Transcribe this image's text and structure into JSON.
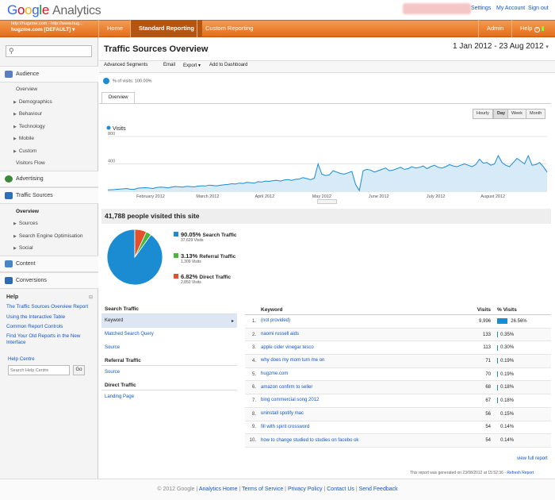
{
  "app": {
    "logo_letters": [
      "G",
      "o",
      "o",
      "g",
      "l",
      "e"
    ],
    "product": "Analytics"
  },
  "top_links": {
    "settings": "Settings",
    "my_account": "My Account",
    "sign_out": "Sign out"
  },
  "account": {
    "line1": "http://hugzme.com - http://www.hug...",
    "line2": "hugzme.com [DEFAULT]"
  },
  "nav": {
    "tabs": [
      "Home",
      "Standard Reporting",
      "Custom Reporting"
    ],
    "admin": "Admin",
    "help": "Help"
  },
  "sidebar": {
    "audience": "Audience",
    "audience_items": [
      "Overview",
      "Demographics",
      "Behaviour",
      "Technology",
      "Mobile",
      "Custom",
      "Visitors Flow"
    ],
    "advertising": "Advertising",
    "traffic_sources": "Traffic Sources",
    "traffic_items": [
      "Overview",
      "Sources",
      "Search Engine Optimisation",
      "Social"
    ],
    "content": "Content",
    "conversions": "Conversions",
    "help_title": "Help",
    "help_links": [
      "The Traffic Sources Overview Report",
      "Using the Interactive Table",
      "Common Report Controls",
      "Find Your Old Reports in the New Interface"
    ],
    "help_centre": "Help Centre",
    "help_search_placeholder": "Search Help Centre",
    "go": "Go"
  },
  "report": {
    "title": "Traffic Sources Overview",
    "date_range": "1 Jan 2012 - 23 Aug 2012",
    "actions": [
      "Advanced Segments",
      "Email",
      "Export ▾",
      "Add to Dashboard"
    ],
    "visits_pct": "% of visits: 100.00%",
    "tab": "Overview",
    "granularity": [
      "Hourly",
      "Day",
      "Week",
      "Month"
    ],
    "granularity_selected": "Day",
    "summary": "41,788 people visited this site"
  },
  "chart_data": {
    "type": "area",
    "series": [
      {
        "name": "Visits",
        "values": [
          20,
          22,
          25,
          30,
          35,
          40,
          30,
          28,
          45,
          50,
          52,
          48,
          40,
          55,
          60,
          58,
          50,
          62,
          70,
          65,
          60,
          72,
          68,
          64,
          75,
          80,
          78,
          90,
          85,
          80,
          88,
          95,
          100,
          110,
          105,
          120,
          115,
          130,
          125,
          118,
          140,
          135,
          150,
          145,
          155,
          160,
          150,
          165,
          170,
          160,
          175,
          180,
          200,
          185,
          170,
          190,
          400,
          250,
          230,
          240,
          300,
          280,
          260,
          250,
          270,
          290,
          100,
          10,
          300,
          320,
          310,
          280,
          300,
          320,
          340,
          300,
          310,
          330,
          350,
          320,
          330,
          360,
          340,
          350,
          370,
          330,
          360,
          380,
          350,
          340,
          360,
          390,
          370,
          360,
          380,
          400,
          380,
          360,
          390,
          470,
          410,
          420,
          380,
          400,
          520,
          420,
          380,
          360,
          420,
          480,
          440,
          400,
          520,
          380,
          390,
          420,
          360,
          280
        ]
      }
    ],
    "x_ticks": [
      "February 2012",
      "March 2012",
      "April 2012",
      "May 2012",
      "June 2012",
      "July 2012",
      "August 2012"
    ],
    "y_ticks": [
      400,
      800
    ],
    "ylim": [
      0,
      800
    ]
  },
  "pie": {
    "slices": [
      {
        "label": "Search Traffic",
        "pct": "90.05%",
        "visits": "37,629 Visits",
        "color": "#1b8cd2",
        "value": 90.05
      },
      {
        "label": "Referral Traffic",
        "pct": "3.13%",
        "visits": "1,309 Visits",
        "color": "#47b83a",
        "value": 3.13
      },
      {
        "label": "Direct Traffic",
        "pct": "6.82%",
        "visits": "2,850 Visits",
        "color": "#e3502d",
        "value": 6.82
      }
    ]
  },
  "left_nav": {
    "search_title": "Search Traffic",
    "search_items": [
      "Keyword",
      "Matched Search Query",
      "Source"
    ],
    "referral_title": "Referral Traffic",
    "referral_items": [
      "Source"
    ],
    "direct_title": "Direct Traffic",
    "direct_items": [
      "Landing Page"
    ]
  },
  "table": {
    "headers": [
      "Keyword",
      "Visits",
      "% Visits"
    ],
    "rows": [
      {
        "n": "1.",
        "kw": "(not provided)",
        "v": "9,996",
        "p": "26.56%",
        "frac": 0.2656
      },
      {
        "n": "2.",
        "kw": "naomi russell aids",
        "v": "133",
        "p": "0.35%",
        "frac": 0.0035
      },
      {
        "n": "3.",
        "kw": "apple cider vinegar tesco",
        "v": "113",
        "p": "0.30%",
        "frac": 0.003
      },
      {
        "n": "4.",
        "kw": "why does my mom turn me on",
        "v": "71",
        "p": "0.19%",
        "frac": 0.0019
      },
      {
        "n": "5.",
        "kw": "hugzme.com",
        "v": "70",
        "p": "0.19%",
        "frac": 0.0019
      },
      {
        "n": "6.",
        "kw": "amazon confirm to seller",
        "v": "68",
        "p": "0.18%",
        "frac": 0.0018
      },
      {
        "n": "7.",
        "kw": "bing commercial song 2012",
        "v": "67",
        "p": "0.18%",
        "frac": 0.0018
      },
      {
        "n": "8.",
        "kw": "uninstall spotify mac",
        "v": "56",
        "p": "0.15%",
        "frac": 0.0015
      },
      {
        "n": "9.",
        "kw": "fill with spirit crossword",
        "v": "54",
        "p": "0.14%",
        "frac": 0.0014
      },
      {
        "n": "10.",
        "kw": "how to change studied to studies on facebo ok",
        "v": "54",
        "p": "0.14%",
        "frac": 0.0014
      }
    ],
    "view_full": "view full report",
    "generated": "This report was generated on 23/08/2012 at 15:52:36 -",
    "refresh": "Refresh Report"
  },
  "footer": {
    "copyright": "© 2012 Google",
    "links": [
      "Analytics Home",
      "Terms of Service",
      "Privacy Policy",
      "Contact Us",
      "Send Feedback"
    ]
  }
}
